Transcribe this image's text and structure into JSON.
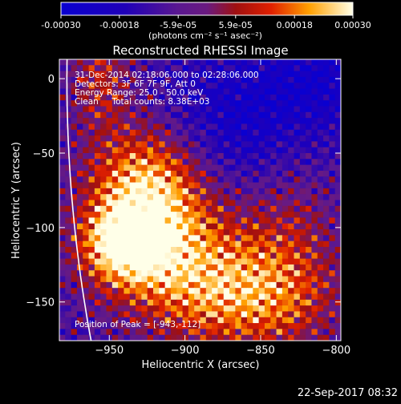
{
  "chart_data": {
    "type": "heatmap",
    "title": "Reconstructed RHESSI Image",
    "xlabel": "Heliocentric X (arcsec)",
    "ylabel": "Heliocentric Y (arcsec)",
    "xlim": [
      -983,
      -797
    ],
    "ylim": [
      -176,
      13
    ],
    "x_ticks": [
      -950,
      -900,
      -850,
      -800
    ],
    "y_ticks": [
      0,
      -50,
      -100,
      -150
    ],
    "colorbar": {
      "range": [
        -0.0003,
        0.0003
      ],
      "tick_values": [
        -0.0003,
        -0.00018,
        -5.9e-05,
        5.9e-05,
        0.00018,
        0.0003
      ],
      "tick_labels": [
        "-0.00030",
        "-0.00018",
        "-5.9e-05",
        "5.9e-05",
        "0.00018",
        "0.00030"
      ],
      "units_label": "(photons cm⁻² s⁻¹ asec⁻²)"
    },
    "annotations": [
      "31-Dec-2014 02:18:06.000 to 02:28:06.000",
      "Detectors: 3F 6F 7F 9F, Att 0",
      "Energy Range: 25.0 - 50.0 keV",
      "Clean     Total counts: 8.38E+03"
    ],
    "peak_label": "Position of Peak = [-943,-112]",
    "peak": [
      -943,
      -112
    ],
    "limb_color": "#ffffff",
    "image_grid": {
      "nx": 48,
      "ny": 48
    }
  },
  "timestamp": "22-Sep-2017 08:32"
}
